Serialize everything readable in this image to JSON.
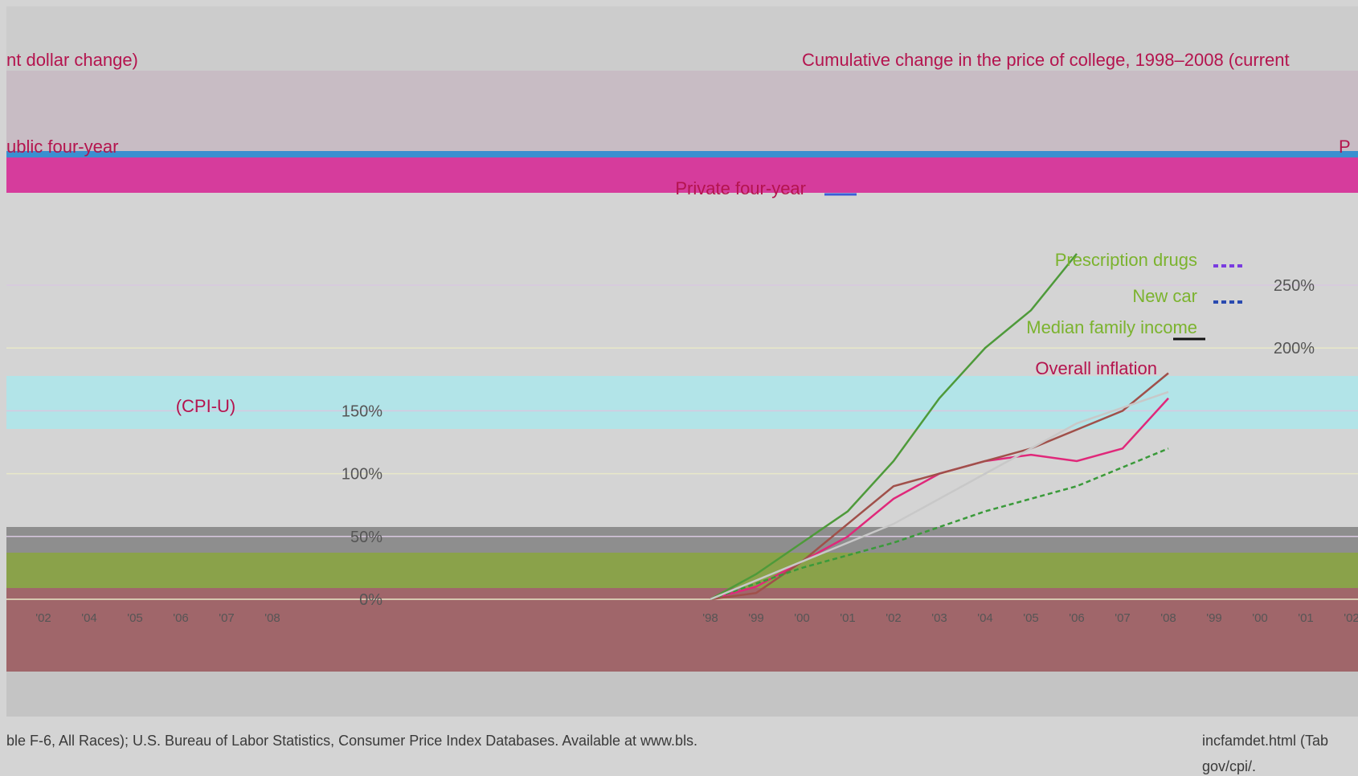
{
  "header": {
    "left_fragment": "nt dollar change)",
    "title_fragment": "Cumulative change in the price of college, 1998–2008 (current",
    "section_left": "ublic four-year",
    "section_right": "P"
  },
  "legend": {
    "items": [
      {
        "label": "Private four-year",
        "color": "#b4144e",
        "swatch": "#3a5ed8",
        "dash": "solid"
      },
      {
        "label": "Prescription drugs",
        "color": "#7bb32e",
        "swatch": "#7a3ce0",
        "dash": "dotted"
      },
      {
        "label": "New car",
        "color": "#7bb32e",
        "swatch": "#2a4ab0",
        "dash": "dotted"
      },
      {
        "label": "Median family income",
        "color": "#7bb32e",
        "swatch": "#111111",
        "dash": "solid"
      },
      {
        "label": "Overall inflation",
        "color": "#b4144e",
        "swatch": "",
        "dash": "none"
      },
      {
        "label": "(CPI-U)",
        "color": "#b4144e",
        "swatch": "",
        "dash": "none"
      }
    ]
  },
  "colors": {
    "background": "#d4d4d4",
    "band_magenta": "#d63c9c",
    "band_cyan": "#b2e4e8",
    "band_gray": "#8e8e8e",
    "band_green": "#8aa24a",
    "band_brown": "#a0666a",
    "series_green": "#4e9a3a",
    "series_magenta": "#e0287a",
    "series_brown": "#a0504a",
    "series_blue": "#2850c8",
    "series_light": "#c8c8c8"
  },
  "chart_data": {
    "type": "line",
    "y_ticks": [
      "250%",
      "200%",
      "150%",
      "100%",
      "50%",
      "0%"
    ],
    "y_tick_values": [
      250,
      200,
      150,
      100,
      50,
      0
    ],
    "ylim": [
      0,
      300
    ],
    "x_ticks": [
      "'02",
      "'04",
      "'05",
      "'06",
      "'07",
      "'08",
      "'98",
      "'99",
      "'00",
      "'01",
      "'02",
      "'03",
      "'04",
      "'05",
      "'06",
      "'07",
      "'08",
      "'99",
      "'00",
      "'01",
      "'02"
    ],
    "left_axis_x_ticks": [
      "'02",
      "'04",
      "'05",
      "'06",
      "'07",
      "'08"
    ],
    "series": [
      {
        "name": "Private four-year",
        "color": "#4e9a3a",
        "x": [
          1998,
          1999,
          2000,
          2001,
          2002,
          2003,
          2004,
          2005,
          2006
        ],
        "y": [
          0,
          20,
          45,
          70,
          110,
          160,
          200,
          230,
          275
        ]
      },
      {
        "name": "Prescription drugs",
        "color": "#e0287a",
        "x": [
          1998,
          1999,
          2000,
          2001,
          2002,
          2003,
          2004,
          2005,
          2006,
          2007,
          2008
        ],
        "y": [
          0,
          10,
          30,
          50,
          80,
          100,
          110,
          115,
          110,
          120,
          160
        ]
      },
      {
        "name": "New car",
        "color": "#a0504a",
        "x": [
          1998,
          1999,
          2000,
          2001,
          2002,
          2003,
          2004,
          2005,
          2006,
          2007,
          2008
        ],
        "y": [
          0,
          5,
          30,
          60,
          90,
          100,
          110,
          120,
          135,
          150,
          180
        ]
      },
      {
        "name": "Median family income",
        "color": "#3a9a3a",
        "x": [
          1998,
          2000,
          2002,
          2004,
          2006,
          2008
        ],
        "y": [
          0,
          25,
          45,
          70,
          90,
          120
        ]
      },
      {
        "name": "Overall inflation (CPI-U)",
        "color": "#c8c8c8",
        "x": [
          1998,
          2000,
          2002,
          2004,
          2006,
          2008
        ],
        "y": [
          0,
          30,
          60,
          100,
          140,
          165
        ]
      }
    ]
  },
  "source": {
    "line1_left": "ble F-6, All Races); U.S. Bureau of Labor Statistics, Consumer Price Index Databases. Available at www.bls.",
    "line1_right": "incfamdet.html (Tab",
    "line2_right": "gov/cpi/."
  }
}
